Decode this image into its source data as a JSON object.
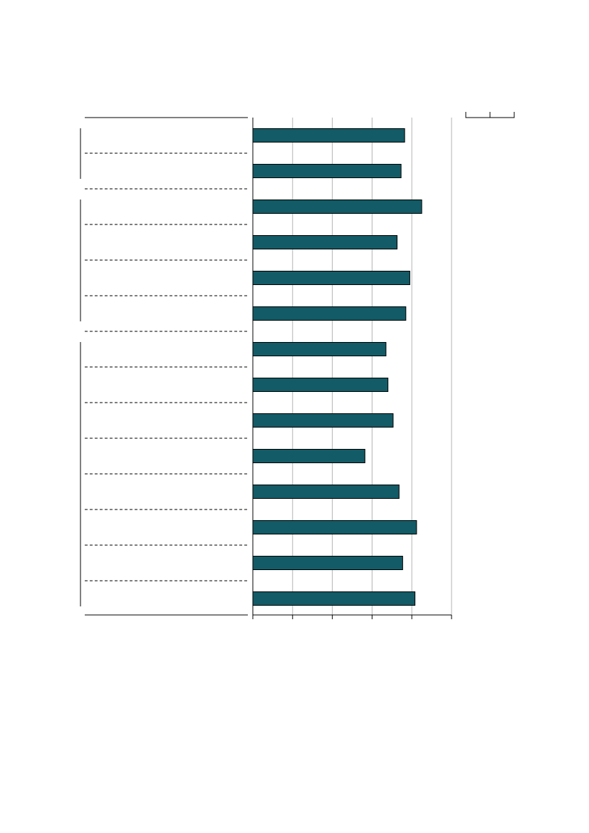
{
  "colors": {
    "bar": "#135b66",
    "grid": "#b3b3b3",
    "axis": "#000000"
  },
  "chart_data": {
    "type": "bar",
    "orientation": "horizontal",
    "title": "",
    "xlabel": "",
    "ylabel": "",
    "categories": [
      "",
      "",
      "",
      "",
      "",
      "",
      "",
      "",
      "",
      "",
      "",
      "",
      "",
      ""
    ],
    "groups": [
      {
        "rows": [
          0,
          1
        ]
      },
      {
        "rows": [
          2,
          3,
          4,
          5
        ]
      },
      {
        "rows": [
          6,
          7,
          8,
          9,
          10,
          11,
          12,
          13
        ]
      }
    ],
    "series": [
      {
        "values": [
          3.82,
          3.73,
          4.25,
          3.63,
          3.95,
          3.85,
          3.35,
          3.4,
          3.53,
          2.82,
          3.68,
          4.12,
          3.77,
          4.08
        ]
      }
    ],
    "xlim": [
      0,
      5
    ],
    "x_gridlines": [
      1,
      2,
      3,
      4,
      5
    ],
    "grid": true,
    "legend": "top-right"
  }
}
